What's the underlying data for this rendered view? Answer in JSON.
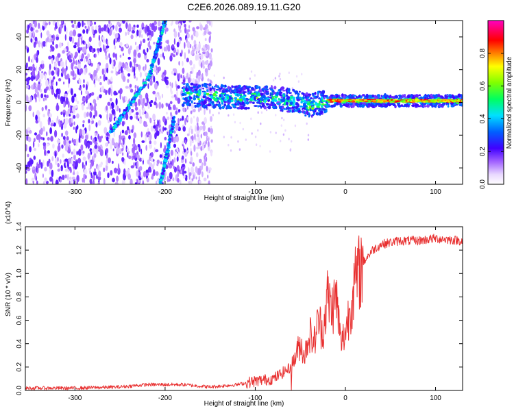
{
  "figure_title": "C2E6.2026.089.19.11.G20",
  "chart_data": [
    {
      "type": "heatmap",
      "xlabel": "Height of straight line (km)",
      "ylabel": "Frequency (Hz)",
      "xlim": [
        -355,
        130
      ],
      "ylim": [
        -50,
        50
      ],
      "xticks": [
        -300,
        -200,
        -100,
        0,
        100
      ],
      "xtick_labels": [
        "-300",
        "-200",
        "-100",
        "0",
        "100"
      ],
      "yticks": [
        -40,
        -20,
        0,
        20,
        40
      ],
      "ytick_labels": [
        "-40",
        "-20",
        "0",
        "20",
        "40"
      ],
      "colorbar": {
        "label": "Normalized spectral amplitude",
        "range": [
          0,
          1
        ],
        "ticks": [
          0.0,
          0.2,
          0.4,
          0.6,
          0.8
        ],
        "tick_labels": [
          "0.0",
          "0.2",
          "0.4",
          "0.6",
          "0.8"
        ],
        "colormap": "white-purple-blue-cyan-green-yellow-red-magenta"
      },
      "features": {
        "diffuse_noise_x_range": [
          -355,
          -148
        ],
        "main_band": [
          {
            "x": -180,
            "f": 5
          },
          {
            "x": -150,
            "f": 4
          },
          {
            "x": -120,
            "f": 3
          },
          {
            "x": -90,
            "f": 3
          },
          {
            "x": -70,
            "f": 2
          },
          {
            "x": -50,
            "f": 0
          },
          {
            "x": -40,
            "f": -2
          },
          {
            "x": -20,
            "f": 1
          },
          {
            "x": 0,
            "f": 1
          },
          {
            "x": 50,
            "f": 1
          },
          {
            "x": 100,
            "f": 1
          },
          {
            "x": 130,
            "f": 1
          }
        ],
        "strong_tail_x_range": [
          -20,
          130
        ],
        "diagonal_tracks": [
          {
            "x0": -260,
            "f0": -18,
            "x1": -218,
            "f1": 15
          },
          {
            "x0": -218,
            "f0": 15,
            "x1": -200,
            "f1": 50
          },
          {
            "x0": -205,
            "f0": -50,
            "x1": -190,
            "f1": -10
          }
        ]
      }
    },
    {
      "type": "line",
      "xlabel": "Height of straight line (km)",
      "ylabel": "SNR (10 * v/v)",
      "y_multiplier": "(x10^4)",
      "xlim": [
        -355,
        130
      ],
      "ylim": [
        0,
        1.4
      ],
      "xticks": [
        -300,
        -200,
        -100,
        0,
        100
      ],
      "xtick_labels": [
        "-300",
        "-200",
        "-100",
        "0",
        "100"
      ],
      "yticks": [
        0.0,
        0.2,
        0.4,
        0.6,
        0.8,
        1.0,
        1.2,
        1.4
      ],
      "ytick_labels": [
        "0.0",
        "0.2",
        "0.4",
        "0.6",
        "0.8",
        "1.0",
        "1.2",
        "1.4"
      ],
      "color": "#e83030",
      "series": [
        {
          "x": [
            -355,
            -300,
            -250,
            -220,
            -180,
            -150,
            -120,
            -100,
            -80,
            -60,
            -50,
            -45,
            -40,
            -35,
            -30,
            -25,
            -20,
            -15,
            -10,
            -5,
            0,
            5,
            10,
            20,
            30,
            40,
            60,
            80,
            100,
            130
          ],
          "y": [
            0.02,
            0.02,
            0.03,
            0.05,
            0.05,
            0.03,
            0.05,
            0.08,
            0.1,
            0.2,
            0.4,
            0.3,
            0.5,
            0.4,
            0.6,
            0.5,
            0.8,
            0.7,
            0.8,
            0.4,
            0.5,
            0.7,
            0.9,
            1.1,
            1.2,
            1.25,
            1.28,
            1.28,
            1.3,
            1.28
          ]
        }
      ]
    }
  ]
}
